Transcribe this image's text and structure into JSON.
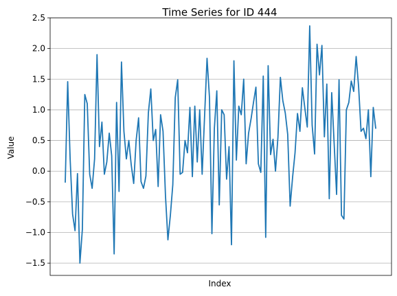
{
  "chart_data": {
    "type": "line",
    "title": "Time Series for ID 444",
    "xlabel": "Index",
    "ylabel": "Value",
    "ylim": [
      -1.7,
      2.5
    ],
    "yticks": [
      -1.5,
      -1.0,
      -0.5,
      0.0,
      0.5,
      1.0,
      1.5,
      2.0,
      2.5
    ],
    "ytick_labels": [
      "−1.5",
      "−1.0",
      "−0.5",
      "0.0",
      "0.5",
      "1.0",
      "1.5",
      "2.0",
      "2.5"
    ],
    "xticks_visible": false,
    "grid": "horizontal",
    "legend": "none",
    "series": [
      {
        "color": "#1f77b4",
        "values": [
          -0.18,
          1.46,
          0.2,
          -0.7,
          -0.97,
          -0.04,
          -1.5,
          -0.95,
          1.25,
          1.1,
          -0.05,
          -0.28,
          0.2,
          1.9,
          0.4,
          0.8,
          -0.05,
          0.15,
          0.62,
          0.25,
          -1.35,
          1.12,
          -0.33,
          1.78,
          0.65,
          0.2,
          0.5,
          0.1,
          -0.2,
          0.5,
          0.87,
          -0.17,
          -0.28,
          -0.08,
          0.95,
          1.34,
          0.5,
          0.68,
          -0.25,
          0.92,
          0.65,
          -0.4,
          -1.12,
          -0.72,
          -0.22,
          1.2,
          1.49,
          -0.05,
          -0.02,
          0.5,
          0.3,
          1.04,
          -0.09,
          1.06,
          0.15,
          1.0,
          -0.05,
          0.9,
          1.84,
          1.2,
          -1.02,
          0.7,
          1.31,
          -0.55,
          1.0,
          0.92,
          -0.13,
          0.4,
          -1.2,
          1.8,
          0.18,
          1.06,
          0.92,
          1.5,
          0.12,
          0.62,
          0.85,
          1.12,
          1.37,
          0.12,
          -0.02,
          1.55,
          -1.08,
          1.72,
          0.27,
          0.52,
          0.0,
          0.55,
          1.53,
          1.15,
          0.95,
          0.6,
          -0.57,
          -0.1,
          0.3,
          0.94,
          0.65,
          1.36,
          1.03,
          0.72,
          2.37,
          0.75,
          0.28,
          2.07,
          1.57,
          2.05,
          0.56,
          1.42,
          -0.45,
          1.28,
          0.45,
          -0.38,
          1.49,
          -0.72,
          -0.78,
          1.0,
          1.12,
          1.47,
          1.3,
          1.87,
          1.38,
          0.65,
          0.7,
          0.53,
          1.0,
          -0.09,
          1.04,
          0.7
        ]
      }
    ]
  }
}
